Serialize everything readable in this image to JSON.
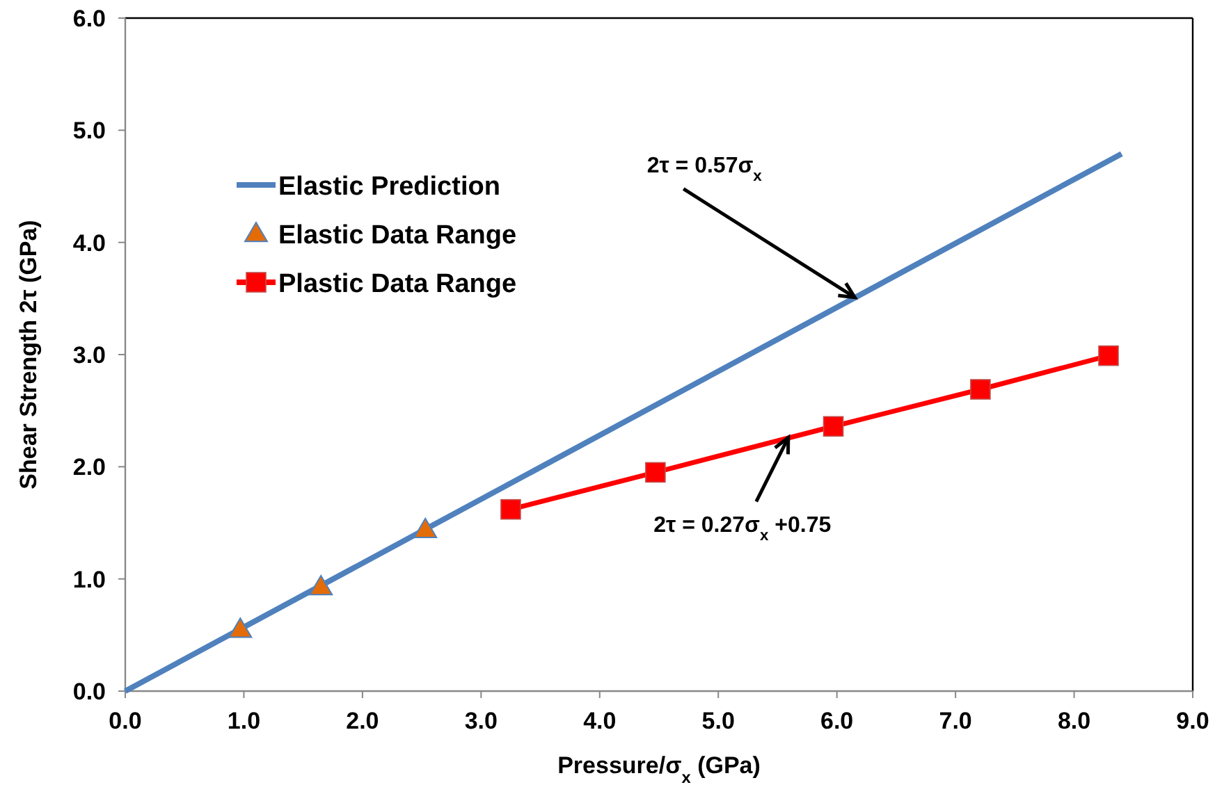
{
  "chart_data": {
    "type": "line",
    "xlabel": "Pressure/σ$_{x}$ (GPa)",
    "ylabel": "Shear  Strength 2τ (GPa)",
    "xlim": [
      0,
      9
    ],
    "xticks": [
      {
        "value": 0,
        "label": "0.0"
      },
      {
        "value": 1,
        "label": "1.0"
      },
      {
        "value": 2,
        "label": "2.0"
      },
      {
        "value": 3,
        "label": "3.0"
      },
      {
        "value": 4,
        "label": "4.0"
      },
      {
        "value": 5,
        "label": "5.0"
      },
      {
        "value": 6,
        "label": "6.0"
      },
      {
        "value": 7,
        "label": "7.0"
      },
      {
        "value": 8,
        "label": "8.0"
      },
      {
        "value": 9,
        "label": "9.0"
      }
    ],
    "ylim": [
      0,
      6
    ],
    "yticks": [
      {
        "value": 0,
        "label": "0.0"
      },
      {
        "value": 1,
        "label": "1.0"
      },
      {
        "value": 2,
        "label": "2.0"
      },
      {
        "value": 3,
        "label": "3.0"
      },
      {
        "value": 4,
        "label": "4.0"
      },
      {
        "value": 5,
        "label": "5.0"
      },
      {
        "value": 6,
        "label": "6.0"
      }
    ],
    "grid": false,
    "legend": "top left",
    "series": [
      {
        "name": "Elastic Prediction",
        "color": "#4f81bd",
        "marker": "none",
        "x": [
          0,
          8.4
        ],
        "values": [
          0,
          4.79
        ]
      },
      {
        "name": "Elastic Data Range",
        "type": "scatter",
        "color": "#e36c09",
        "marker": "triangle",
        "x": [
          0.97,
          1.65,
          2.53
        ],
        "values": [
          0.55,
          0.93,
          1.44
        ]
      },
      {
        "name": "Plastic Data Range",
        "color": "#ff0000",
        "marker": "square",
        "x": [
          3.25,
          4.47,
          5.97,
          7.21,
          8.29
        ],
        "values": [
          1.62,
          1.95,
          2.36,
          2.69,
          2.99
        ]
      }
    ],
    "annotations": [
      {
        "text": "2τ = 0.57σ$_{x}$",
        "x": 6.15,
        "y": 3.51
      },
      {
        "text": "2τ = 0.27σ$_{x}$  +0.75",
        "x": 5.59,
        "y": 2.26
      }
    ]
  }
}
